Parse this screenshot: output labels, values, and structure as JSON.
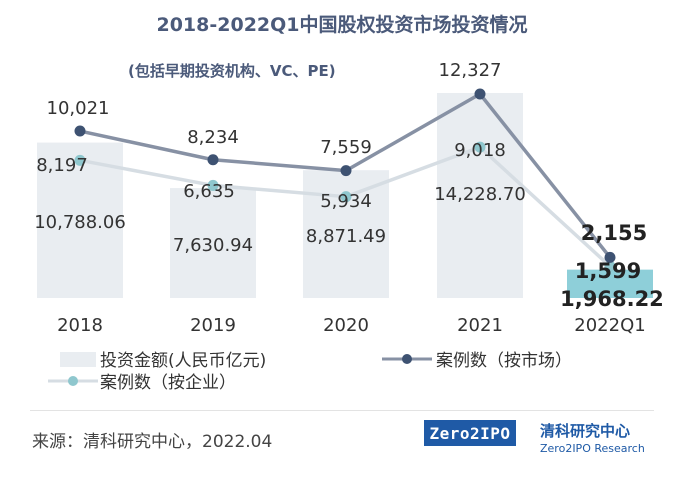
{
  "chart_data": {
    "type": "bar",
    "title": "2018-2022Q1中国股权投资市场投资情况",
    "subtitle": "(包括早期投资机构、VC、PE)",
    "categories": [
      "2018",
      "2019",
      "2020",
      "2021",
      "2022Q1"
    ],
    "series": [
      {
        "name": "投资金额(人民币亿元)",
        "type": "bar",
        "values": [
          10788.06,
          7630.94,
          8871.49,
          14228.7,
          1968.22
        ],
        "labels": [
          "10,788.06",
          "7,630.94",
          "8,871.49",
          "14,228.70",
          "1,968.22"
        ],
        "color": "#e9edf1",
        "color_last": "#8ecfd9"
      },
      {
        "name": "案例数（按市场）",
        "type": "line",
        "values": [
          10021,
          8234,
          7559,
          12327,
          2155
        ],
        "labels": [
          "10,021",
          "8,234",
          "7,559",
          "12,327",
          "2,155"
        ],
        "color": "#8791a4",
        "marker_color": "#3e5272"
      },
      {
        "name": "案例数（按企业）",
        "type": "line",
        "values": [
          8197,
          6635,
          5934,
          9018,
          1599
        ],
        "labels": [
          "8,197",
          "6,635",
          "5,934",
          "9,018",
          "1,599"
        ],
        "color": "#d6dde3",
        "marker_color": "#8fc7ce"
      }
    ],
    "legend_position": "bottom",
    "grid": false
  },
  "footer": {
    "source": "来源：清科研究中心，2022.04",
    "logo_text": "Zero2IPO",
    "brand_cn": "清科研究中心",
    "brand_en": "Zero2IPO Research"
  }
}
